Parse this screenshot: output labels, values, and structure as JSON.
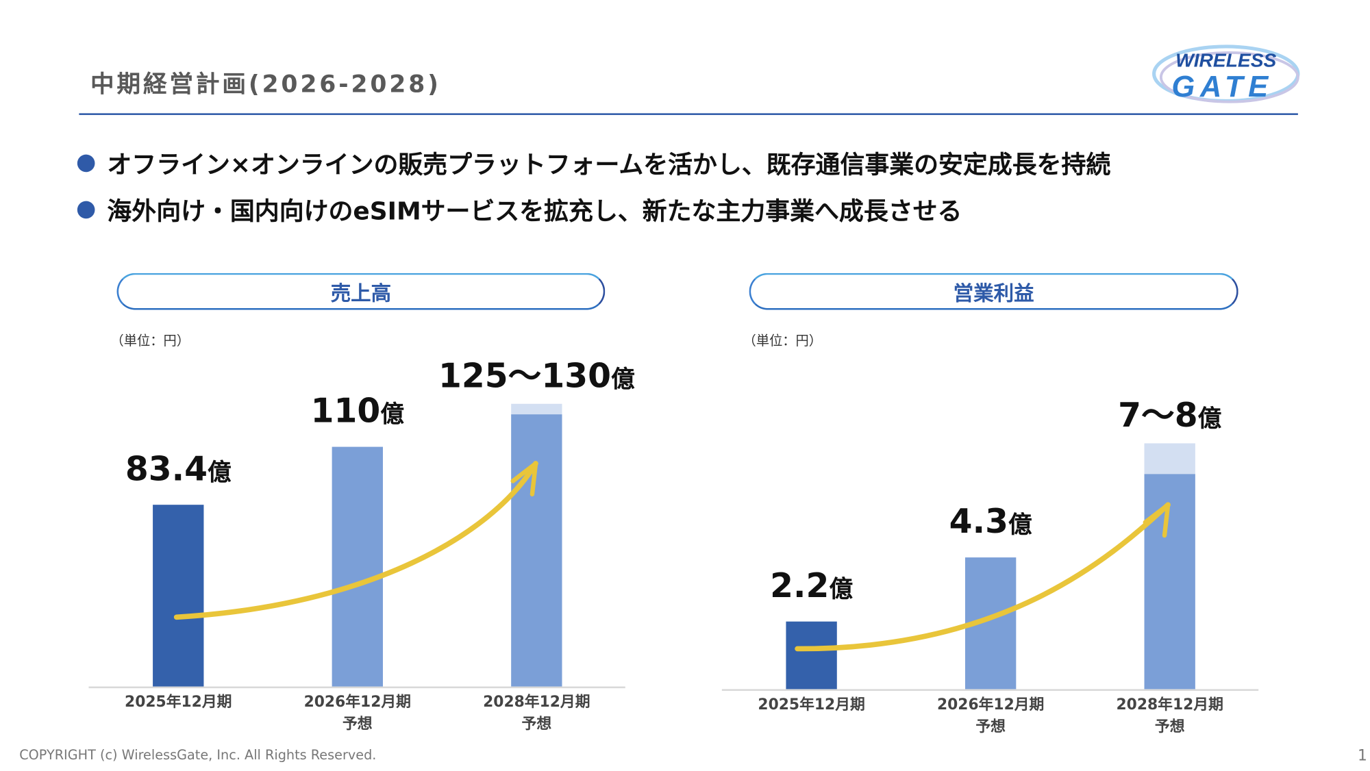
{
  "header": {
    "title": "中期経営計画(2026-2028)",
    "logo_text": [
      "WIRELESS",
      "GATE"
    ]
  },
  "bullets": [
    "オフライン×オンラインの販売プラットフォームを活かし、既存通信事業の安定成長を持続",
    "海外向け・国内向けのeSIMサービスを拡充し、新たな主力事業へ成長させる"
  ],
  "colors": {
    "actual_bar": "#3461ab",
    "forecast_bar": "#7b9fd7",
    "forecast_range": "#d3dff2",
    "arrow": "#e9c53a",
    "accent": "#2f5aa8"
  },
  "chart_data": [
    {
      "type": "bar",
      "title": "売上高",
      "unit_note": "（単位：円）",
      "categories": [
        [
          "2025年12月期",
          ""
        ],
        [
          "2026年12月期",
          "予想"
        ],
        [
          "2028年12月期",
          "予想"
        ]
      ],
      "values": [
        83.4,
        110,
        125
      ],
      "range_upper": [
        null,
        null,
        130
      ],
      "labels": [
        {
          "value": "83.4",
          "unit": "億"
        },
        {
          "value": "110",
          "unit": "億"
        },
        {
          "value": "125〜130",
          "unit": "億"
        }
      ],
      "ylim": [
        0,
        130
      ],
      "grid": false,
      "trend_arrow": true
    },
    {
      "type": "bar",
      "title": "営業利益",
      "unit_note": "（単位：円）",
      "categories": [
        [
          "2025年12月期",
          ""
        ],
        [
          "2026年12月期",
          "予想"
        ],
        [
          "2028年12月期",
          "予想"
        ]
      ],
      "values": [
        2.2,
        4.3,
        7
      ],
      "range_upper": [
        null,
        null,
        8
      ],
      "labels": [
        {
          "value": "2.2",
          "unit": "億"
        },
        {
          "value": "4.3",
          "unit": "億"
        },
        {
          "value": "7〜8",
          "unit": "億"
        }
      ],
      "ylim": [
        0,
        8
      ],
      "grid": false,
      "trend_arrow": true
    }
  ],
  "footer": {
    "copyright": "COPYRIGHT (c) WirelessGate, Inc. All Rights Reserved.",
    "page_number": "1"
  }
}
